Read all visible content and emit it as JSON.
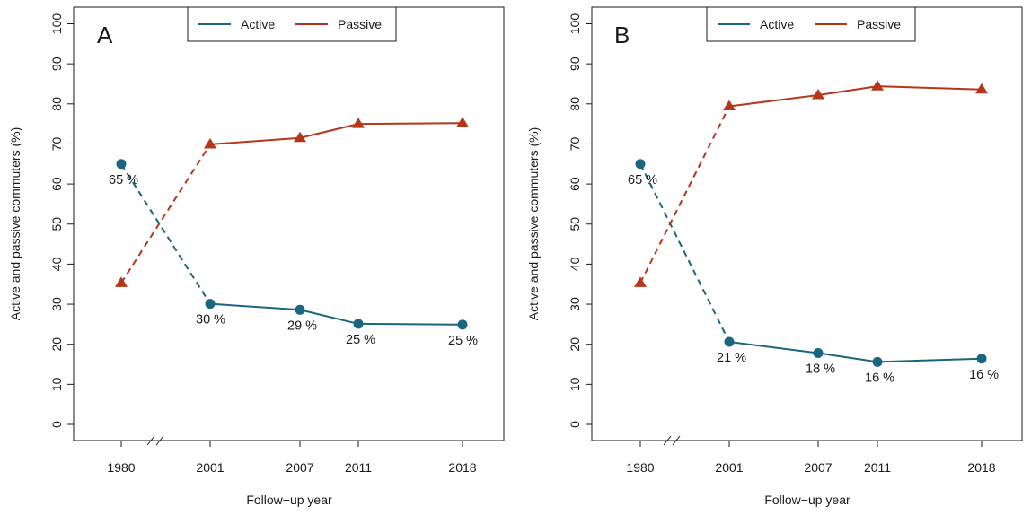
{
  "chart_data": [
    {
      "type": "line",
      "panel": "A",
      "xlabel": "Follow−up year",
      "ylabel": "Active and passive commuters (%)",
      "x": [
        "1980",
        "2001",
        "2007",
        "2011",
        "2018"
      ],
      "ylim": [
        0,
        100
      ],
      "yticks": [
        "0",
        "10",
        "20",
        "30",
        "40",
        "50",
        "60",
        "70",
        "80",
        "90",
        "100"
      ],
      "axis_break_after": "1980",
      "legend": {
        "position": "top-center",
        "entries": [
          "Active",
          "Passive"
        ]
      },
      "series": [
        {
          "name": "Active",
          "color": "#1a6580",
          "marker": "circle",
          "values": [
            65,
            30.1,
            28.6,
            25.1,
            24.9
          ],
          "labels": [
            "65 %",
            "30 %",
            "29 %",
            "25 %",
            "25 %"
          ]
        },
        {
          "name": "Passive",
          "color": "#b5361a",
          "marker": "triangle",
          "values": [
            35.3,
            69.9,
            71.5,
            75.0,
            75.2
          ]
        }
      ],
      "line_style": {
        "1980-2001": "dashed",
        "2001-2018": "solid"
      }
    },
    {
      "type": "line",
      "panel": "B",
      "xlabel": "Follow−up year",
      "ylabel": "Active and passive commuters (%)",
      "x": [
        "1980",
        "2001",
        "2007",
        "2011",
        "2018"
      ],
      "ylim": [
        0,
        100
      ],
      "yticks": [
        "0",
        "10",
        "20",
        "30",
        "40",
        "50",
        "60",
        "70",
        "80",
        "90",
        "100"
      ],
      "axis_break_after": "1980",
      "legend": {
        "position": "top-center",
        "entries": [
          "Active",
          "Passive"
        ]
      },
      "series": [
        {
          "name": "Active",
          "color": "#1a6580",
          "marker": "circle",
          "values": [
            65,
            20.6,
            17.8,
            15.6,
            16.4
          ],
          "labels": [
            "65 %",
            "21 %",
            "18 %",
            "16 %",
            "16 %"
          ]
        },
        {
          "name": "Passive",
          "color": "#b5361a",
          "marker": "triangle",
          "values": [
            35.3,
            79.4,
            82.2,
            84.4,
            83.6
          ]
        }
      ],
      "line_style": {
        "1980-2001": "dashed",
        "2001-2018": "solid"
      }
    }
  ]
}
